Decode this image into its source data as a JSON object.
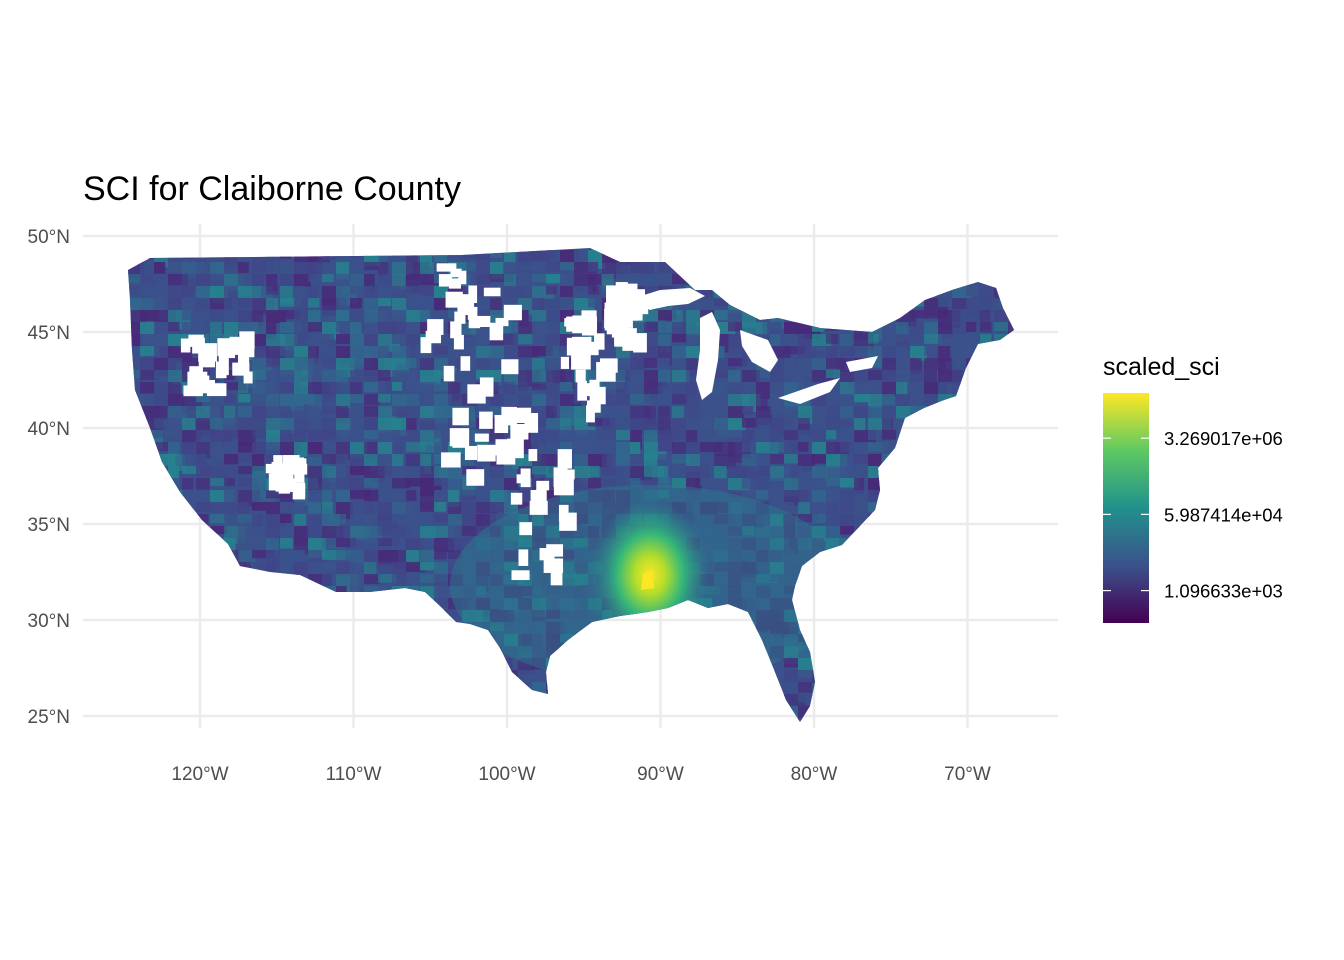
{
  "chart_data": {
    "type": "choropleth",
    "title": "SCI for Claiborne County",
    "region": "United States (contiguous), counties",
    "focus_county": "Claiborne County",
    "fill_variable": "scaled_sci",
    "color_scale": "viridis (log)",
    "x_axis": {
      "ticks": [
        {
          "lon": -120,
          "label": "120°W"
        },
        {
          "lon": -110,
          "label": "110°W"
        },
        {
          "lon": -100,
          "label": "100°W"
        },
        {
          "lon": -90,
          "label": "90°W"
        },
        {
          "lon": -80,
          "label": "80°W"
        },
        {
          "lon": -70,
          "label": "70°W"
        }
      ]
    },
    "y_axis": {
      "ticks": [
        {
          "lat": 50,
          "label": "50°N"
        },
        {
          "lat": 45,
          "label": "45°N"
        },
        {
          "lat": 40,
          "label": "40°N"
        },
        {
          "lat": 35,
          "label": "35°N"
        },
        {
          "lat": 30,
          "label": "30°N"
        },
        {
          "lat": 25,
          "label": "25°N"
        }
      ]
    },
    "legend": {
      "title": "scaled_sci",
      "placement": "right",
      "breaks": [
        {
          "value": 3269017,
          "label": "3.269017e+06"
        },
        {
          "value": 59874.14,
          "label": "5.987414e+04"
        },
        {
          "value": 1096.633,
          "label": "1.096633e+03"
        }
      ],
      "colors": [
        "#440154",
        "#3b528b",
        "#21918c",
        "#5ec962",
        "#fde725"
      ]
    },
    "grid": true
  }
}
